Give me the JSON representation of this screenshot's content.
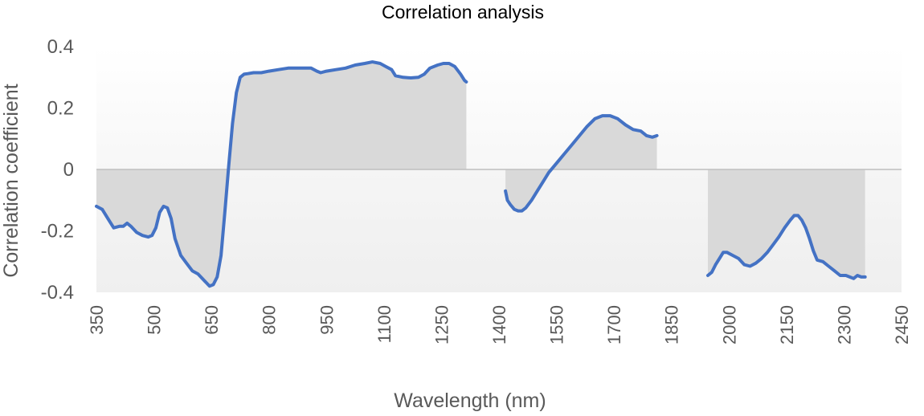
{
  "chart_data": {
    "type": "area",
    "title": "Correlation analysis",
    "xlabel": "Wavelength (nm)",
    "ylabel": "Correlation coefficient",
    "xlim": [
      350,
      2450
    ],
    "ylim": [
      -0.4,
      0.4
    ],
    "x_ticks": [
      "350",
      "500",
      "650",
      "800",
      "950",
      "1100",
      "1250",
      "1400",
      "1550",
      "1700",
      "1850",
      "2000",
      "2150",
      "2300",
      "2450"
    ],
    "y_ticks": [
      "0.4",
      "0.2",
      "0",
      "-0.2",
      "-0.4"
    ],
    "colors": {
      "line": "#4472C4",
      "area": "#D9D9D9",
      "background_top": "#FAFAFA",
      "background_bottom": "#EFEFEF",
      "zero_line": "#BFBFBF"
    },
    "series": [
      {
        "points": [
          [
            350,
            -0.12
          ],
          [
            365,
            -0.13
          ],
          [
            380,
            -0.16
          ],
          [
            395,
            -0.19
          ],
          [
            410,
            -0.185
          ],
          [
            420,
            -0.185
          ],
          [
            430,
            -0.175
          ],
          [
            440,
            -0.185
          ],
          [
            455,
            -0.205
          ],
          [
            470,
            -0.215
          ],
          [
            485,
            -0.22
          ],
          [
            495,
            -0.215
          ],
          [
            505,
            -0.19
          ],
          [
            515,
            -0.14
          ],
          [
            525,
            -0.12
          ],
          [
            535,
            -0.125
          ],
          [
            545,
            -0.16
          ],
          [
            555,
            -0.225
          ],
          [
            570,
            -0.28
          ],
          [
            585,
            -0.305
          ],
          [
            600,
            -0.33
          ],
          [
            615,
            -0.34
          ],
          [
            630,
            -0.36
          ],
          [
            645,
            -0.38
          ],
          [
            655,
            -0.375
          ],
          [
            665,
            -0.35
          ],
          [
            675,
            -0.28
          ],
          [
            685,
            -0.14
          ],
          [
            695,
            0.01
          ],
          [
            705,
            0.15
          ],
          [
            715,
            0.25
          ],
          [
            725,
            0.3
          ],
          [
            735,
            0.31
          ],
          [
            745,
            0.312
          ],
          [
            760,
            0.315
          ],
          [
            780,
            0.315
          ],
          [
            800,
            0.32
          ],
          [
            825,
            0.325
          ],
          [
            850,
            0.33
          ],
          [
            870,
            0.33
          ],
          [
            890,
            0.33
          ],
          [
            910,
            0.33
          ],
          [
            925,
            0.32
          ],
          [
            935,
            0.315
          ],
          [
            950,
            0.32
          ],
          [
            975,
            0.325
          ],
          [
            1000,
            0.33
          ],
          [
            1025,
            0.34
          ],
          [
            1050,
            0.345
          ],
          [
            1070,
            0.35
          ],
          [
            1090,
            0.345
          ],
          [
            1105,
            0.335
          ],
          [
            1120,
            0.325
          ],
          [
            1130,
            0.305
          ],
          [
            1150,
            0.3
          ],
          [
            1170,
            0.298
          ],
          [
            1190,
            0.3
          ],
          [
            1205,
            0.31
          ],
          [
            1220,
            0.33
          ],
          [
            1240,
            0.34
          ],
          [
            1255,
            0.345
          ],
          [
            1270,
            0.345
          ],
          [
            1285,
            0.335
          ],
          [
            1300,
            0.31
          ],
          [
            1310,
            0.29
          ],
          [
            1315,
            0.285
          ]
        ]
      },
      {
        "points": [
          [
            1417,
            -0.07
          ],
          [
            1422,
            -0.1
          ],
          [
            1430,
            -0.115
          ],
          [
            1440,
            -0.13
          ],
          [
            1450,
            -0.135
          ],
          [
            1460,
            -0.135
          ],
          [
            1470,
            -0.125
          ],
          [
            1485,
            -0.1
          ],
          [
            1500,
            -0.07
          ],
          [
            1515,
            -0.04
          ],
          [
            1530,
            -0.01
          ],
          [
            1550,
            0.02
          ],
          [
            1570,
            0.05
          ],
          [
            1590,
            0.08
          ],
          [
            1610,
            0.11
          ],
          [
            1630,
            0.14
          ],
          [
            1650,
            0.165
          ],
          [
            1670,
            0.175
          ],
          [
            1690,
            0.175
          ],
          [
            1710,
            0.165
          ],
          [
            1730,
            0.145
          ],
          [
            1750,
            0.13
          ],
          [
            1770,
            0.125
          ],
          [
            1785,
            0.11
          ],
          [
            1800,
            0.105
          ],
          [
            1812,
            0.11
          ]
        ]
      },
      {
        "points": [
          [
            1945,
            -0.345
          ],
          [
            1955,
            -0.335
          ],
          [
            1965,
            -0.31
          ],
          [
            1975,
            -0.29
          ],
          [
            1985,
            -0.27
          ],
          [
            1995,
            -0.27
          ],
          [
            2010,
            -0.28
          ],
          [
            2025,
            -0.29
          ],
          [
            2040,
            -0.31
          ],
          [
            2055,
            -0.315
          ],
          [
            2070,
            -0.305
          ],
          [
            2085,
            -0.29
          ],
          [
            2100,
            -0.27
          ],
          [
            2115,
            -0.245
          ],
          [
            2130,
            -0.22
          ],
          [
            2145,
            -0.19
          ],
          [
            2160,
            -0.165
          ],
          [
            2170,
            -0.15
          ],
          [
            2180,
            -0.15
          ],
          [
            2190,
            -0.165
          ],
          [
            2200,
            -0.19
          ],
          [
            2210,
            -0.225
          ],
          [
            2220,
            -0.265
          ],
          [
            2230,
            -0.295
          ],
          [
            2245,
            -0.3
          ],
          [
            2260,
            -0.315
          ],
          [
            2275,
            -0.33
          ],
          [
            2290,
            -0.345
          ],
          [
            2305,
            -0.345
          ],
          [
            2315,
            -0.35
          ],
          [
            2325,
            -0.355
          ],
          [
            2335,
            -0.345
          ],
          [
            2345,
            -0.35
          ],
          [
            2355,
            -0.35
          ]
        ]
      }
    ]
  }
}
